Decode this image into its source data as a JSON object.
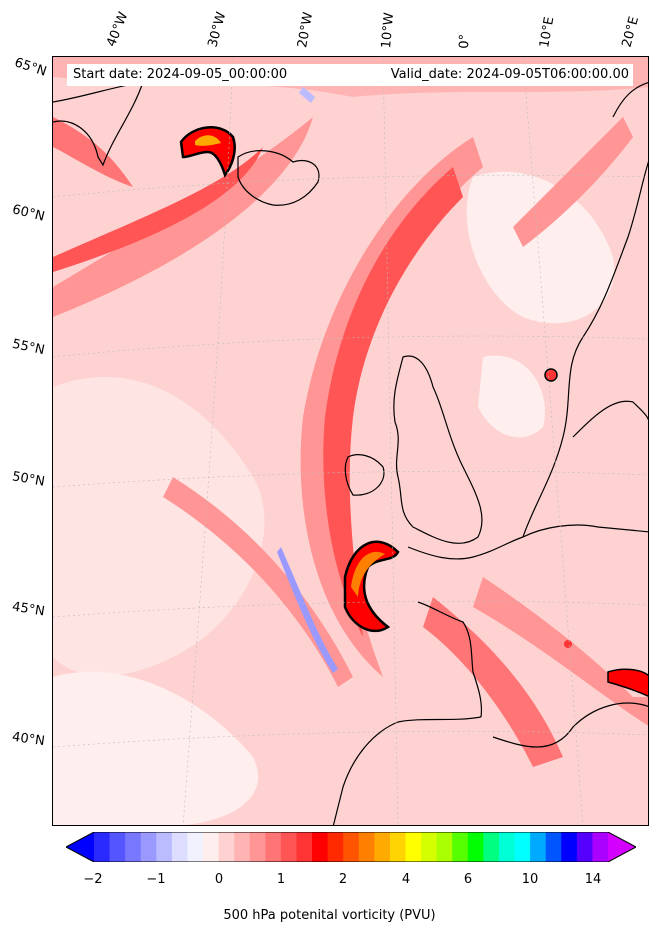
{
  "header": {
    "start_date": "Start date: 2024-09-05_00:00:00",
    "valid_date": "Valid_date: 2024-09-05T06:00:00.00"
  },
  "longitude_labels": [
    "40°W",
    "30°W",
    "20°W",
    "10°W",
    "0°",
    "10°E",
    "20°E"
  ],
  "latitude_labels": [
    "65°N",
    "60°N",
    "55°N",
    "50°N",
    "45°N",
    "40°N"
  ],
  "colorbar": {
    "label": "500 hPa potenital vorticity (PVU)",
    "ticks": [
      "−2",
      "−1",
      "0",
      "1",
      "2",
      "4",
      "6",
      "10",
      "14"
    ],
    "colors": [
      "#0000ff",
      "#2a2aff",
      "#5555ff",
      "#7777ff",
      "#9999ff",
      "#bbbbff",
      "#ddddff",
      "#f2f2ff",
      "#ffeeee",
      "#ffd2d2",
      "#ffb4b4",
      "#ff9595",
      "#ff7575",
      "#ff5555",
      "#ff3535",
      "#ff0000",
      "#ff2a00",
      "#ff5500",
      "#ff8000",
      "#ffaa00",
      "#ffd400",
      "#ffff00",
      "#d4ff00",
      "#aaff00",
      "#55ff00",
      "#00ff00",
      "#00ff80",
      "#00ffd4",
      "#00ffff",
      "#00aaff",
      "#0055ff",
      "#0000ff",
      "#5500ff",
      "#aa00ff",
      "#d400ff"
    ]
  },
  "field_colors": {
    "background": "#ffd2d2",
    "light": "#ffeeee",
    "medium": "#ff9595",
    "strong": "#ff5555",
    "red": "#ff0000",
    "orange": "#ff8000",
    "negative": "#9999ff",
    "coast": "#000000"
  }
}
